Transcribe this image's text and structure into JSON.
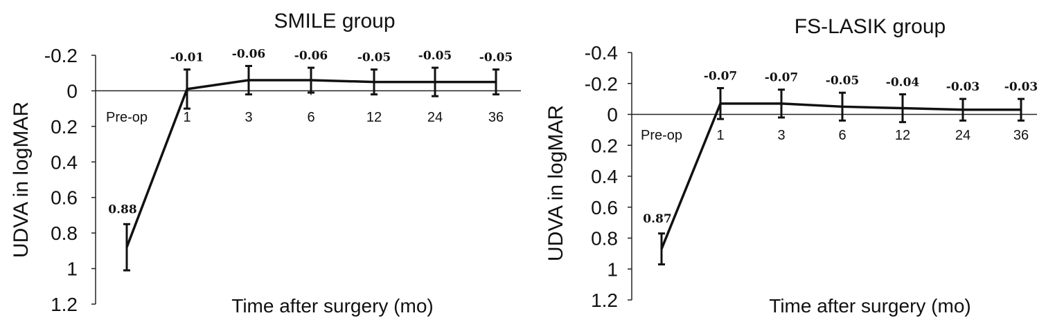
{
  "chart_data": [
    {
      "type": "line",
      "title": "SMILE group",
      "xlabel": "Time after surgery (mo)",
      "ylabel": "UDVA in logMAR",
      "categories": [
        "Pre-op",
        "1",
        "3",
        "6",
        "12",
        "24",
        "36"
      ],
      "yticks": [
        "-0.2",
        "0",
        "0.2",
        "0.4",
        "0.6",
        "0.8",
        "1",
        "1.2"
      ],
      "ylim": [
        -0.2,
        1.2
      ],
      "y_inverted": true,
      "grid": false,
      "series": [
        {
          "values": [
            0.88,
            -0.01,
            -0.06,
            -0.06,
            -0.05,
            -0.05,
            -0.05
          ],
          "error": [
            0.13,
            0.11,
            0.08,
            0.07,
            0.07,
            0.08,
            0.07
          ],
          "labels": [
            "0.88",
            "-0.01",
            "-0.06",
            "-0.06",
            "-0.05",
            "-0.05",
            "-0.05"
          ]
        }
      ]
    },
    {
      "type": "line",
      "title": "FS-LASIK group",
      "xlabel": "Time after surgery (mo)",
      "ylabel": "UDVA in logMAR",
      "categories": [
        "Pre-op",
        "1",
        "3",
        "6",
        "12",
        "24",
        "36"
      ],
      "yticks": [
        "-0.4",
        "-0.2",
        "0",
        "0.2",
        "0.4",
        "0.6",
        "0.8",
        "1",
        "1.2"
      ],
      "ylim": [
        -0.4,
        1.2
      ],
      "y_inverted": true,
      "grid": false,
      "series": [
        {
          "values": [
            0.87,
            -0.07,
            -0.07,
            -0.05,
            -0.04,
            -0.03,
            -0.03
          ],
          "error": [
            0.1,
            0.1,
            0.09,
            0.09,
            0.09,
            0.07,
            0.07
          ],
          "labels": [
            "0.87",
            "-0.07",
            "-0.07",
            "-0.05",
            "-0.04",
            "-0.03",
            "-0.03"
          ]
        }
      ]
    }
  ]
}
